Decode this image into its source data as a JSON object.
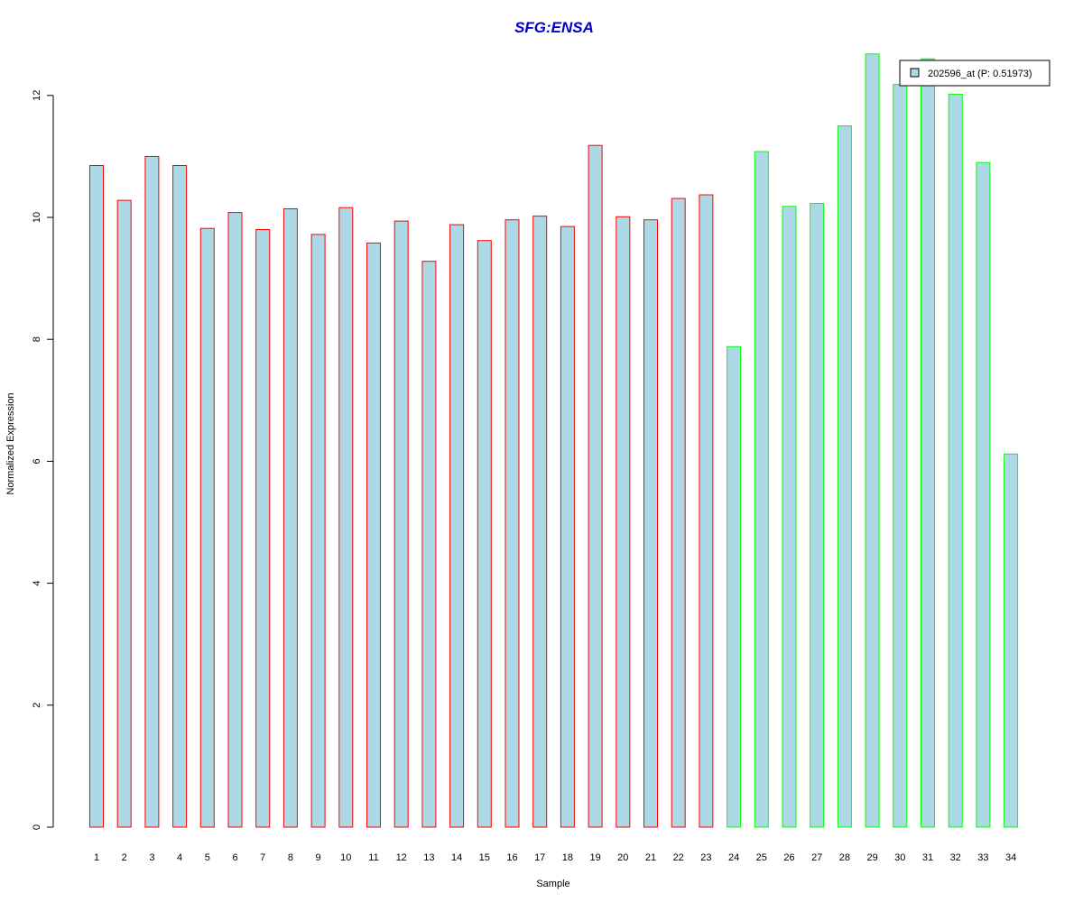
{
  "chart_data": {
    "type": "bar",
    "title": "SFG:ENSA",
    "xlabel": "Sample",
    "ylabel": "Normalized Expression",
    "categories": [
      "1",
      "2",
      "3",
      "4",
      "5",
      "6",
      "7",
      "8",
      "9",
      "10",
      "11",
      "12",
      "13",
      "14",
      "15",
      "16",
      "17",
      "18",
      "19",
      "20",
      "21",
      "22",
      "23",
      "24",
      "25",
      "26",
      "27",
      "28",
      "29",
      "30",
      "31",
      "32",
      "33",
      "34"
    ],
    "values": [
      10.85,
      10.28,
      11.0,
      10.85,
      9.82,
      10.08,
      9.8,
      10.14,
      9.72,
      10.16,
      9.58,
      9.94,
      9.28,
      9.88,
      9.62,
      9.96,
      10.02,
      9.85,
      11.18,
      10.01,
      9.96,
      10.31,
      10.37,
      7.88,
      11.08,
      10.18,
      10.23,
      11.5,
      12.68,
      12.18,
      12.6,
      12.02,
      10.9,
      6.12
    ],
    "groups": [
      "a",
      "a",
      "a",
      "a",
      "a",
      "a",
      "a",
      "a",
      "a",
      "a",
      "a",
      "a",
      "a",
      "a",
      "a",
      "a",
      "a",
      "a",
      "a",
      "a",
      "a",
      "a",
      "a",
      "b",
      "b",
      "b",
      "b",
      "b",
      "b",
      "b",
      "b",
      "b",
      "b",
      "b"
    ],
    "group_colors": {
      "a": "#ff0000",
      "b": "#00ff00"
    },
    "bar_fill": "#add8e6",
    "title_color": "#0000cd",
    "ylim": [
      0,
      12.68
    ],
    "yticks": [
      0,
      2,
      4,
      6,
      8,
      10,
      12
    ],
    "legend": {
      "label": "202596_at (P: 0.51973)",
      "position": "top-right"
    },
    "grid": false
  }
}
